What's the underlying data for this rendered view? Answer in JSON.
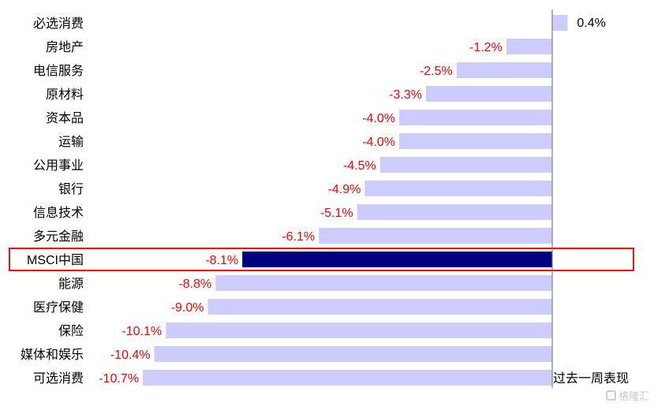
{
  "chart_data": {
    "type": "bar",
    "orientation": "horizontal",
    "categories": [
      "必选消费",
      "房地产",
      "电信服务",
      "原材料",
      "资本品",
      "运输",
      "公用事业",
      "银行",
      "信息技术",
      "多元金融",
      "MSCI中国",
      "能源",
      "医疗保健",
      "保险",
      "媒体和娱乐",
      "可选消费"
    ],
    "values": [
      0.4,
      -1.2,
      -2.5,
      -3.3,
      -4.0,
      -4.0,
      -4.5,
      -4.9,
      -5.1,
      -6.1,
      -8.1,
      -8.8,
      -9.0,
      -10.1,
      -10.4,
      -10.7
    ],
    "value_labels": [
      "0.4%",
      "-1.2%",
      "-2.5%",
      "-3.3%",
      "-4.0%",
      "-4.0%",
      "-4.5%",
      "-4.9%",
      "-5.1%",
      "-6.1%",
      "-8.1%",
      "-8.8%",
      "-9.0%",
      "-10.1%",
      "-10.4%",
      "-10.7%"
    ],
    "highlight_category": "MSCI中国",
    "xlim": [
      -11,
      0.5
    ],
    "axis_label": "过去一周表现",
    "grid": false,
    "colors": {
      "bar": "#ccccff",
      "highlight_bar": "#000080",
      "negative_label": "#ff0000",
      "positive_label": "#000000",
      "highlight_box": "#e8161c",
      "axis": "#808080"
    }
  },
  "watermark": {
    "text": "格隆汇"
  }
}
